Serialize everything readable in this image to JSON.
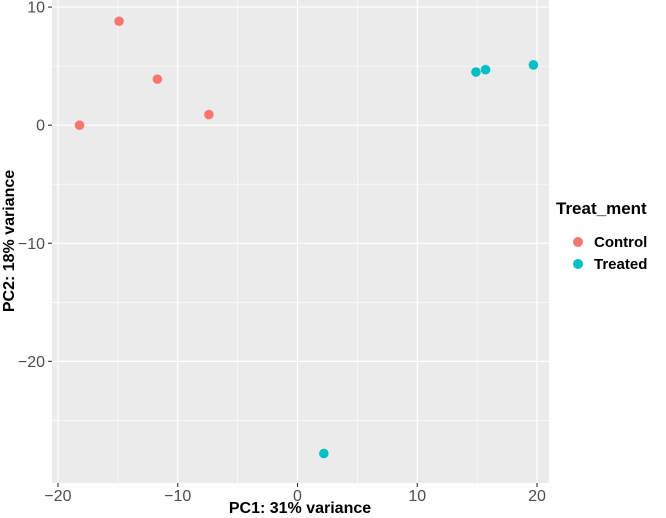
{
  "chart_data": {
    "type": "scatter",
    "title": "",
    "xlabel": "PC1: 31% variance",
    "ylabel": "PC2: 18% variance",
    "xlim": [
      -20.5,
      21
    ],
    "ylim": [
      -30.3,
      10.6
    ],
    "xticks": [
      -20,
      -10,
      0,
      10,
      20
    ],
    "xtick_labels": [
      "−20",
      "−10",
      "0",
      "10",
      "20"
    ],
    "yticks": [
      -20,
      -10,
      0,
      10
    ],
    "ytick_labels": [
      "−20",
      "−10",
      "0",
      "10"
    ],
    "grid": true,
    "legend_title": "Treat_ment",
    "legend_position": "right",
    "series": [
      {
        "name": "Control",
        "color": "#F8766D",
        "points": [
          {
            "x": -18.2,
            "y": 0.0
          },
          {
            "x": -14.9,
            "y": 8.8
          },
          {
            "x": -11.7,
            "y": 3.9
          },
          {
            "x": -7.4,
            "y": 0.9
          }
        ]
      },
      {
        "name": "Treated",
        "color": "#00BFC4",
        "points": [
          {
            "x": 2.2,
            "y": -27.8
          },
          {
            "x": 14.9,
            "y": 4.5
          },
          {
            "x": 15.7,
            "y": 4.7
          },
          {
            "x": 19.7,
            "y": 5.1
          }
        ]
      }
    ]
  },
  "colors": {
    "panel_background": "#EBEBEB",
    "grid_major": "#FFFFFF"
  }
}
